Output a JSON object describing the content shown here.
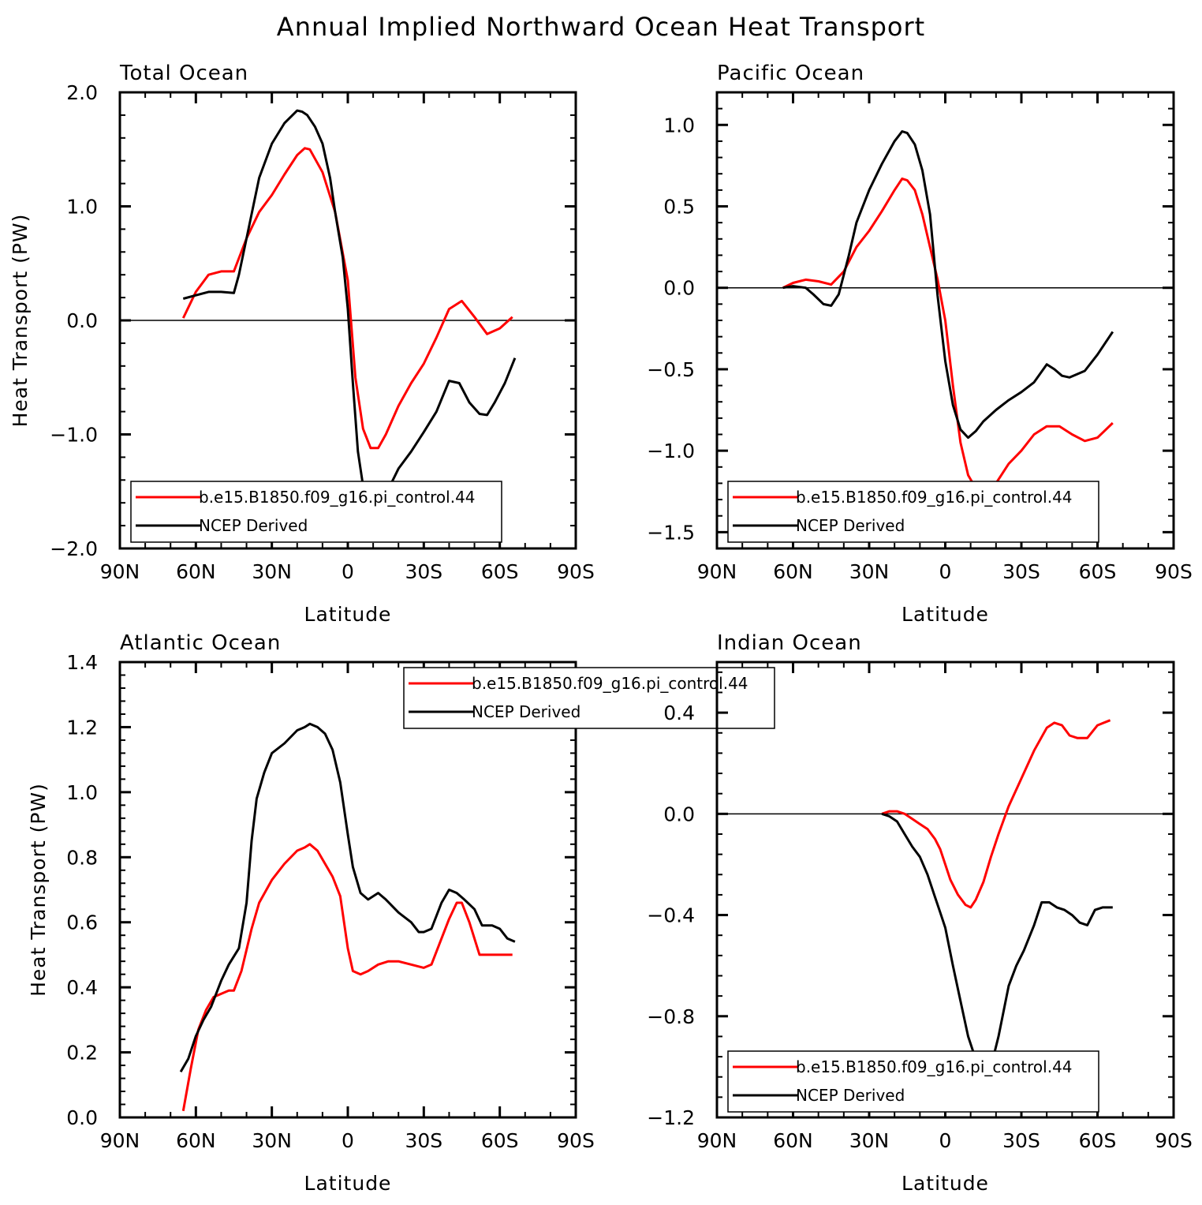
{
  "figure": {
    "title": "Annual Implied Northward Ocean Heat Transport"
  },
  "colors": {
    "model": "#ff0000",
    "observed": "#000000",
    "axis": "#000000",
    "background": "#ffffff"
  },
  "chart_data": [
    {
      "type": "line",
      "title": "Total Ocean",
      "xlabel": "Latitude",
      "ylabel": "Heat Transport (PW)",
      "xlim": [
        90,
        -90
      ],
      "ylim": [
        -2.0,
        2.0
      ],
      "x_ticks": [
        90,
        60,
        30,
        0,
        -30,
        -60,
        -90
      ],
      "x_tick_labels": [
        "90N",
        "60N",
        "30N",
        "0",
        "30S",
        "60S",
        "90S"
      ],
      "y_ticks": [
        -2.0,
        -1.0,
        0.0,
        1.0,
        2.0
      ],
      "y_tick_labels": [
        "−2.0",
        "−1.0",
        "0.0",
        "1.0",
        "2.0"
      ],
      "zero_line": true,
      "grid": false,
      "legend": {
        "position": "bottom-left",
        "show_ylabel": true
      },
      "series": [
        {
          "name": "b.e15.B1850.f09_g16.pi_control.44",
          "color": "#ff0000",
          "x": [
            65,
            60,
            55,
            50,
            45,
            40,
            35,
            30,
            25,
            20,
            17,
            15,
            10,
            5,
            0,
            -3,
            -6,
            -9,
            -12,
            -15,
            -20,
            -25,
            -30,
            -35,
            -40,
            -45,
            -50,
            -55,
            -60,
            -65
          ],
          "y": [
            0.02,
            0.25,
            0.4,
            0.43,
            0.43,
            0.72,
            0.95,
            1.1,
            1.28,
            1.45,
            1.51,
            1.5,
            1.3,
            0.95,
            0.35,
            -0.5,
            -0.95,
            -1.12,
            -1.12,
            -1.0,
            -0.75,
            -0.55,
            -0.38,
            -0.15,
            0.1,
            0.17,
            0.03,
            -0.12,
            -0.07,
            0.03
          ]
        },
        {
          "name": "NCEP Derived",
          "color": "#000000",
          "x": [
            65,
            60,
            55,
            50,
            45,
            43,
            40,
            35,
            30,
            25,
            20,
            18,
            16,
            13,
            10,
            7,
            5,
            2,
            0,
            -2,
            -4,
            -6,
            -8,
            -10,
            -13,
            -16,
            -20,
            -25,
            -30,
            -35,
            -40,
            -44,
            -48,
            -52,
            -55,
            -58,
            -62,
            -66
          ],
          "y": [
            0.19,
            0.22,
            0.25,
            0.25,
            0.24,
            0.4,
            0.72,
            1.25,
            1.55,
            1.73,
            1.84,
            1.83,
            1.8,
            1.7,
            1.55,
            1.25,
            0.95,
            0.55,
            0.1,
            -0.55,
            -1.15,
            -1.45,
            -1.6,
            -1.65,
            -1.6,
            -1.48,
            -1.3,
            -1.15,
            -0.98,
            -0.8,
            -0.53,
            -0.55,
            -0.72,
            -0.82,
            -0.83,
            -0.72,
            -0.55,
            -0.33
          ]
        }
      ]
    },
    {
      "type": "line",
      "title": "Pacific Ocean",
      "xlabel": "Latitude",
      "ylabel": "",
      "xlim": [
        90,
        -90
      ],
      "ylim": [
        -1.6,
        1.2
      ],
      "x_ticks": [
        90,
        60,
        30,
        0,
        -30,
        -60,
        -90
      ],
      "x_tick_labels": [
        "90N",
        "60N",
        "30N",
        "0",
        "30S",
        "60S",
        "90S"
      ],
      "y_ticks": [
        -1.5,
        -1.0,
        -0.5,
        0.0,
        0.5,
        1.0
      ],
      "y_tick_labels": [
        "−1.5",
        "−1.0",
        "−0.5",
        "0.0",
        "0.5",
        "1.0"
      ],
      "zero_line": true,
      "grid": false,
      "legend": {
        "position": "bottom-left",
        "show_ylabel": false
      },
      "series": [
        {
          "name": "b.e15.B1850.f09_g16.pi_control.44",
          "color": "#ff0000",
          "x": [
            64,
            60,
            55,
            50,
            45,
            40,
            35,
            30,
            25,
            20,
            17,
            15,
            12,
            9,
            6,
            3,
            0,
            -3,
            -6,
            -9,
            -12,
            -15,
            -20,
            -25,
            -30,
            -35,
            -40,
            -45,
            -50,
            -55,
            -60,
            -66
          ],
          "y": [
            0.0,
            0.03,
            0.05,
            0.04,
            0.02,
            0.1,
            0.25,
            0.35,
            0.47,
            0.6,
            0.67,
            0.66,
            0.6,
            0.45,
            0.25,
            0.05,
            -0.2,
            -0.6,
            -0.95,
            -1.15,
            -1.23,
            -1.25,
            -1.2,
            -1.08,
            -1.0,
            -0.9,
            -0.85,
            -0.85,
            -0.9,
            -0.94,
            -0.92,
            -0.83
          ]
        },
        {
          "name": "NCEP Derived",
          "color": "#000000",
          "x": [
            64,
            60,
            55,
            52,
            48,
            45,
            42,
            38,
            35,
            30,
            25,
            20,
            17,
            15,
            12,
            9,
            6,
            3,
            0,
            -3,
            -6,
            -9,
            -12,
            -15,
            -20,
            -25,
            -30,
            -35,
            -40,
            -43,
            -46,
            -49,
            -52,
            -55,
            -60,
            -66
          ],
          "y": [
            0.0,
            0.01,
            0.0,
            -0.04,
            -0.1,
            -0.11,
            -0.04,
            0.2,
            0.4,
            0.6,
            0.76,
            0.9,
            0.96,
            0.95,
            0.88,
            0.72,
            0.45,
            -0.05,
            -0.45,
            -0.72,
            -0.87,
            -0.92,
            -0.88,
            -0.82,
            -0.75,
            -0.69,
            -0.64,
            -0.58,
            -0.47,
            -0.5,
            -0.54,
            -0.55,
            -0.53,
            -0.51,
            -0.41,
            -0.27
          ]
        }
      ]
    },
    {
      "type": "line",
      "title": "Atlantic Ocean",
      "xlabel": "Latitude",
      "ylabel": "Heat Transport (PW)",
      "xlim": [
        90,
        -90
      ],
      "ylim": [
        0.0,
        1.4
      ],
      "x_ticks": [
        90,
        60,
        30,
        0,
        -30,
        -60,
        -90
      ],
      "x_tick_labels": [
        "90N",
        "60N",
        "30N",
        "0",
        "30S",
        "60S",
        "90S"
      ],
      "y_ticks": [
        0.0,
        0.2,
        0.4,
        0.6,
        0.8,
        1.0,
        1.2,
        1.4
      ],
      "y_tick_labels": [
        "0.0",
        "0.2",
        "0.4",
        "0.6",
        "0.8",
        "1.0",
        "1.2",
        "1.4"
      ],
      "zero_line": false,
      "grid": false,
      "legend": {
        "position": "top-center",
        "show_ylabel": true
      },
      "series": [
        {
          "name": "b.e15.B1850.f09_g16.pi_control.44",
          "color": "#ff0000",
          "x": [
            65,
            62,
            59,
            56,
            53,
            50,
            47,
            45,
            42,
            38,
            35,
            30,
            25,
            20,
            17,
            15,
            12,
            9,
            6,
            3,
            0,
            -2,
            -5,
            -8,
            -12,
            -16,
            -20,
            -25,
            -30,
            -33,
            -36,
            -40,
            -43,
            -45,
            -48,
            -52,
            -56,
            -60,
            -65
          ],
          "y": [
            0.02,
            0.15,
            0.27,
            0.33,
            0.37,
            0.38,
            0.39,
            0.39,
            0.45,
            0.58,
            0.66,
            0.73,
            0.78,
            0.82,
            0.83,
            0.84,
            0.82,
            0.78,
            0.74,
            0.68,
            0.52,
            0.45,
            0.44,
            0.45,
            0.47,
            0.48,
            0.48,
            0.47,
            0.46,
            0.47,
            0.53,
            0.61,
            0.66,
            0.66,
            0.6,
            0.5,
            0.5,
            0.5,
            0.5
          ]
        },
        {
          "name": "NCEP Derived",
          "color": "#000000",
          "x": [
            66,
            63,
            60,
            57,
            54,
            50,
            47,
            43,
            40,
            38,
            36,
            33,
            30,
            25,
            20,
            17,
            15,
            12,
            9,
            6,
            3,
            0,
            -2,
            -5,
            -8,
            -12,
            -15,
            -20,
            -25,
            -28,
            -30,
            -33,
            -37,
            -40,
            -43,
            -46,
            -50,
            -53,
            -57,
            -60,
            -63,
            -66
          ],
          "y": [
            0.14,
            0.18,
            0.25,
            0.3,
            0.34,
            0.42,
            0.47,
            0.52,
            0.66,
            0.85,
            0.98,
            1.06,
            1.12,
            1.15,
            1.19,
            1.2,
            1.21,
            1.2,
            1.18,
            1.13,
            1.03,
            0.87,
            0.77,
            0.69,
            0.67,
            0.69,
            0.67,
            0.63,
            0.6,
            0.57,
            0.57,
            0.58,
            0.66,
            0.7,
            0.69,
            0.67,
            0.64,
            0.59,
            0.59,
            0.58,
            0.55,
            0.54
          ]
        }
      ]
    },
    {
      "type": "line",
      "title": "Indian Ocean",
      "xlabel": "Latitude",
      "ylabel": "",
      "xlim": [
        90,
        -90
      ],
      "ylim": [
        -1.2,
        0.6
      ],
      "x_ticks": [
        90,
        60,
        30,
        0,
        -30,
        -60,
        -90
      ],
      "x_tick_labels": [
        "90N",
        "60N",
        "30N",
        "0",
        "30S",
        "60S",
        "90S"
      ],
      "y_ticks": [
        -1.2,
        -0.8,
        -0.4,
        0.0,
        0.4
      ],
      "y_tick_labels": [
        "−1.2",
        "−0.8",
        "−0.4",
        "0.0",
        "0.4"
      ],
      "zero_line": true,
      "grid": false,
      "legend": {
        "position": "bottom-left",
        "show_ylabel": false
      },
      "series": [
        {
          "name": "b.e15.B1850.f09_g16.pi_control.44",
          "color": "#ff0000",
          "x": [
            25,
            22,
            19,
            16,
            13,
            10,
            7,
            4,
            2,
            0,
            -2,
            -5,
            -8,
            -10,
            -12,
            -15,
            -18,
            -21,
            -25,
            -30,
            -35,
            -40,
            -43,
            -46,
            -49,
            -52,
            -56,
            -60,
            -65
          ],
          "y": [
            0.0,
            0.01,
            0.01,
            0.0,
            -0.02,
            -0.04,
            -0.06,
            -0.1,
            -0.14,
            -0.2,
            -0.26,
            -0.32,
            -0.36,
            -0.37,
            -0.34,
            -0.27,
            -0.17,
            -0.08,
            0.03,
            0.14,
            0.25,
            0.34,
            0.36,
            0.35,
            0.31,
            0.3,
            0.3,
            0.35,
            0.37
          ]
        },
        {
          "name": "NCEP Derived",
          "color": "#000000",
          "x": [
            25,
            22,
            19,
            16,
            13,
            10,
            7,
            4,
            2,
            0,
            -3,
            -6,
            -9,
            -12,
            -15,
            -18,
            -21,
            -25,
            -28,
            -31,
            -35,
            -38,
            -41,
            -44,
            -47,
            -50,
            -53,
            -56,
            -59,
            -62,
            -66
          ],
          "y": [
            0.0,
            -0.01,
            -0.03,
            -0.08,
            -0.13,
            -0.17,
            -0.24,
            -0.33,
            -0.39,
            -0.45,
            -0.6,
            -0.74,
            -0.88,
            -0.97,
            -1.04,
            -1.0,
            -0.88,
            -0.68,
            -0.6,
            -0.54,
            -0.44,
            -0.35,
            -0.35,
            -0.37,
            -0.38,
            -0.4,
            -0.43,
            -0.44,
            -0.38,
            -0.37,
            -0.37
          ]
        }
      ]
    }
  ]
}
